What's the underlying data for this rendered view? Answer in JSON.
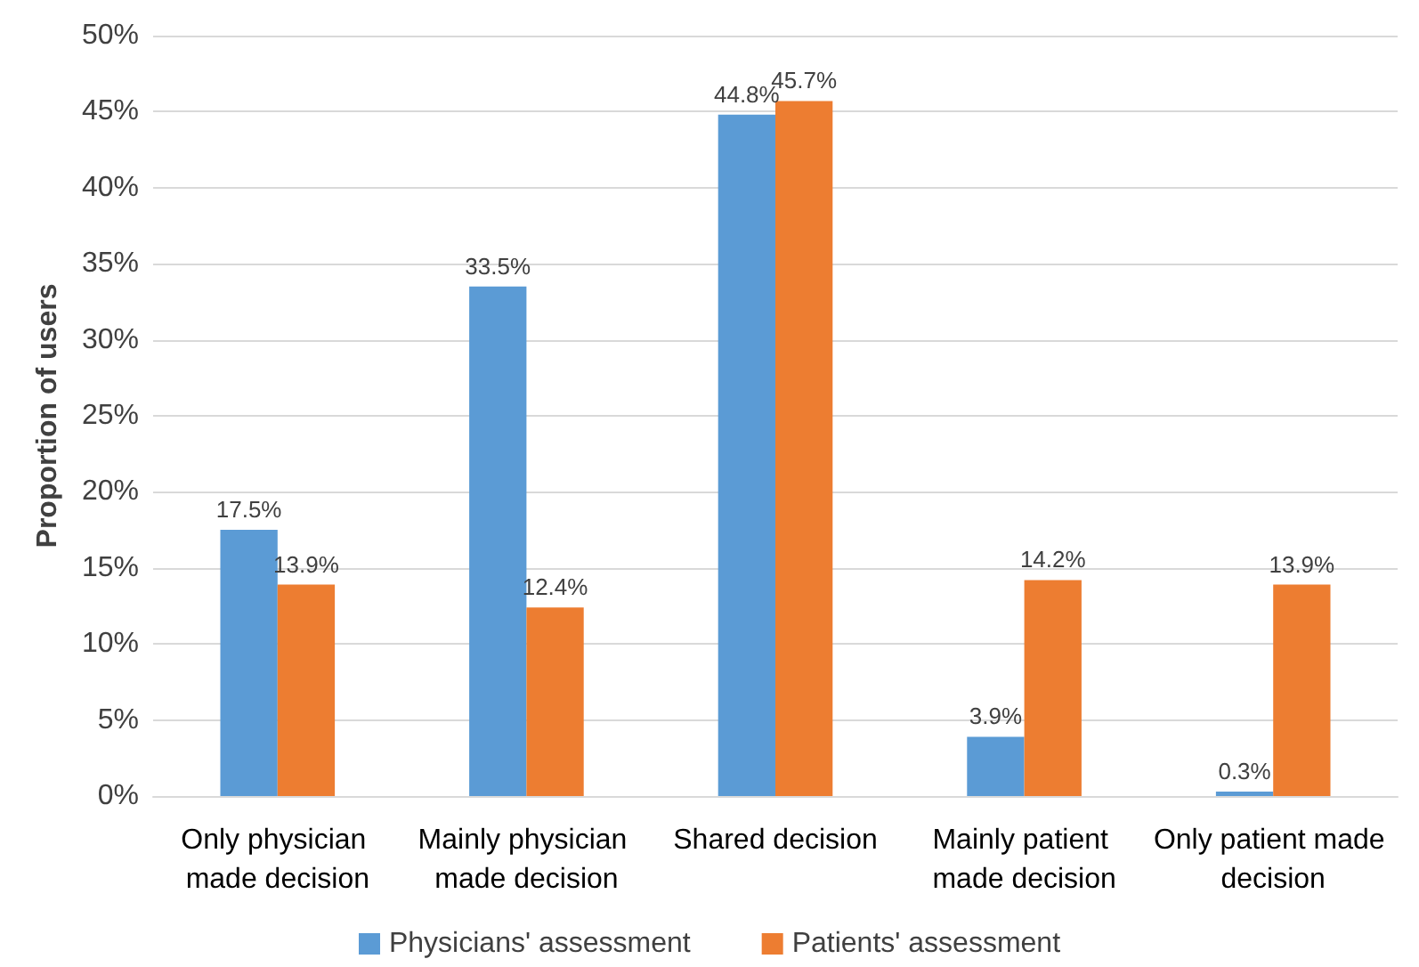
{
  "chart_data": {
    "type": "bar",
    "ylabel": "Proportion of users",
    "categories": [
      "Only physician made decision",
      "Mainly physician made decision",
      "Shared decision",
      "Mainly patient made decision",
      "Only patient made decision"
    ],
    "series": [
      {
        "name": "Physicians' assessment",
        "color": "#5b9bd5",
        "values": [
          17.5,
          33.5,
          44.8,
          3.9,
          0.3
        ],
        "value_labels": [
          "17.5%",
          "33.5%",
          "44.8%",
          "3.9%",
          "0.3%"
        ]
      },
      {
        "name": "Patients' assessment",
        "color": "#ed7d31",
        "values": [
          13.9,
          12.4,
          45.7,
          14.2,
          13.9
        ],
        "value_labels": [
          "13.9%",
          "12.4%",
          "45.7%",
          "14.2%",
          "13.9%"
        ]
      }
    ],
    "ylim": [
      0,
      50
    ],
    "yticks": [
      {
        "value": 0,
        "label": "0%"
      },
      {
        "value": 5,
        "label": "5%"
      },
      {
        "value": 10,
        "label": "10%"
      },
      {
        "value": 15,
        "label": "15%"
      },
      {
        "value": 20,
        "label": "20%"
      },
      {
        "value": 25,
        "label": "25%"
      },
      {
        "value": 30,
        "label": "30%"
      },
      {
        "value": 35,
        "label": "35%"
      },
      {
        "value": 40,
        "label": "40%"
      },
      {
        "value": 45,
        "label": "45%"
      },
      {
        "value": 50,
        "label": "50%"
      }
    ],
    "grid": "y",
    "legend": "bottom"
  }
}
